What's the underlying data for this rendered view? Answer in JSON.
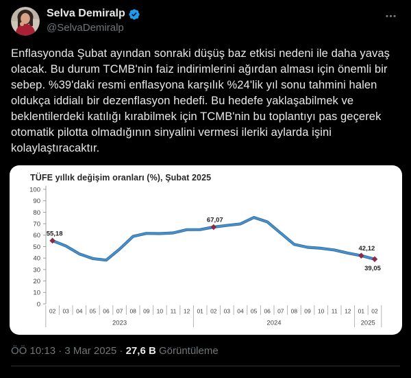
{
  "tweet": {
    "author": {
      "name": "Selva Demiralp",
      "handle": "@SelvaDemiralp"
    },
    "body": "Enflasyonda Şubat ayından sonraki düşüş baz etkisi nedeni ile daha yavaş olacak. Bu durum TCMB'nin faiz indirimlerini ağırdan alması için önemli bir sebep. %39'daki resmi enflasyona karşılık %24'lik yıl sonu tahmini halen oldukça iddialı bir dezenflasyon hedefi. Bu hedefe yaklaşabilmek ve beklentilerdeki katılığı kırabilmek için TCMB'nin bu toplantıyı pas geçerek otomatik pilotta olmadığının sinyalini vermesi ileriki aylarda işini kolaylaştıracaktır.",
    "footer": {
      "timestamp": "ÖÖ 10:13 · 3 Mar 2025",
      "separator": "·",
      "views_count": "27,6 B",
      "views_label": "Görüntüleme"
    }
  },
  "colors": {
    "background": "#000000",
    "primary_text": "#e7e9ea",
    "secondary_text": "#71767b",
    "verified_blue": "#1d9bf0",
    "divider": "#2f3336",
    "card_background": "#ffffff"
  },
  "chart_data": {
    "type": "line",
    "title": "TÜFE yıllık değişim oranları (%), Şubat 2025",
    "xlabel": "",
    "ylabel": "",
    "ylim": [
      0,
      100
    ],
    "ytick_step": 10,
    "grid": false,
    "legend_position": "none",
    "years": [
      {
        "label": "2023",
        "months": [
          "02",
          "03",
          "04",
          "05",
          "06",
          "07",
          "08",
          "09",
          "10",
          "11",
          "12"
        ]
      },
      {
        "label": "2024",
        "months": [
          "01",
          "02",
          "03",
          "04",
          "05",
          "06",
          "07",
          "08",
          "09",
          "10",
          "11",
          "12"
        ]
      },
      {
        "label": "2025",
        "months": [
          "01",
          "02"
        ]
      }
    ],
    "values": [
      55.18,
      50.51,
      43.68,
      39.59,
      38.21,
      47.83,
      58.94,
      61.53,
      61.36,
      61.98,
      64.77,
      64.86,
      67.07,
      68.5,
      69.8,
      75.45,
      71.6,
      61.78,
      51.97,
      49.38,
      48.58,
      47.09,
      44.38,
      42.12,
      39.05
    ],
    "annotations": [
      {
        "index": 0,
        "label": "55,18",
        "position": "above",
        "dx": 3
      },
      {
        "index": 12,
        "label": "67,07",
        "position": "above",
        "dx": 2
      },
      {
        "index": 23,
        "label": "42,12",
        "position": "above",
        "dx": 8
      },
      {
        "index": 24,
        "label": "39,05",
        "position": "below",
        "dx": -3
      }
    ],
    "line_color": "#4a90c9",
    "line_edge_color": "#2e6da4",
    "marker_color": "#8a2a44",
    "axis_color": "#9b9b9b",
    "separator_color": "#b3b3b3",
    "text_color": "#404040",
    "annotation_text_color": "#1f1f1f"
  }
}
